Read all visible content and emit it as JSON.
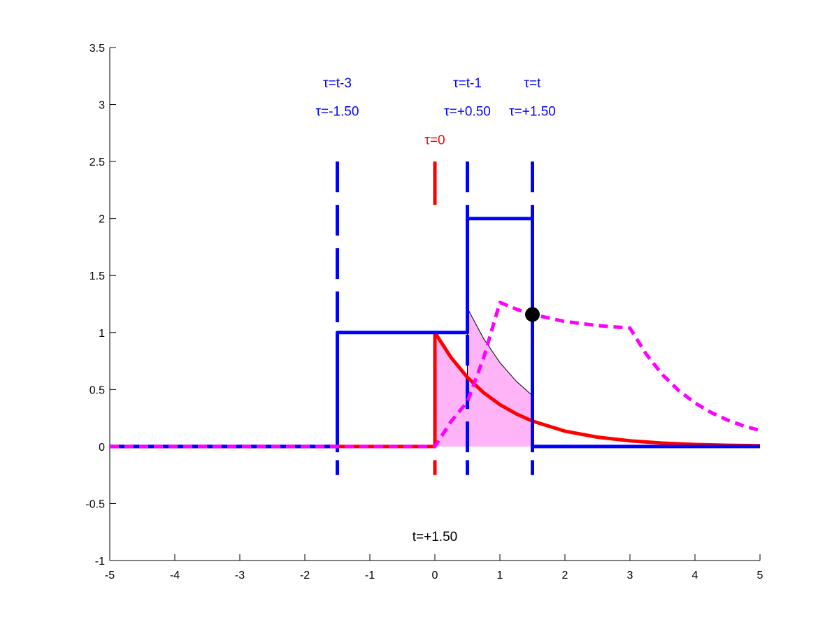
{
  "chart_data": {
    "type": "line",
    "xlim": [
      -5,
      5
    ],
    "ylim": [
      -1,
      3.5
    ],
    "x_ticks": [
      "-5",
      "-4",
      "-3",
      "-2",
      "-1",
      "0",
      "1",
      "2",
      "3",
      "4",
      "5"
    ],
    "y_ticks": [
      "-1",
      "-0.5",
      "0",
      "0.5",
      "1",
      "1.5",
      "2",
      "2.5",
      "3",
      "3.5"
    ],
    "grid": false,
    "t_value": 1.5,
    "colors": {
      "input": "#0000ff",
      "impulse_response": "#ff0000",
      "output": "#ff00ff",
      "overlap_fill": "#ffb4f7",
      "marker": "#000000"
    },
    "series": [
      {
        "style": "solid-blue-step",
        "x": [
          -5,
          -1.5,
          -1.5,
          0.5,
          0.5,
          1.5,
          1.5,
          5
        ],
        "y": [
          0,
          0,
          1,
          1,
          2,
          2,
          0,
          0
        ]
      },
      {
        "style": "solid-red-exponential",
        "x": [
          -5,
          0,
          0,
          0.25,
          0.5,
          0.75,
          1,
          1.25,
          1.5,
          2,
          2.5,
          3,
          3.5,
          4,
          4.5,
          5
        ],
        "y": [
          0,
          0,
          1,
          0.779,
          0.607,
          0.472,
          0.368,
          0.287,
          0.223,
          0.135,
          0.082,
          0.05,
          0.03,
          0.018,
          0.011,
          0.007
        ]
      },
      {
        "style": "dashed-magenta",
        "x": [
          -5,
          0,
          0.25,
          0.5,
          0.75,
          1,
          1.25,
          1.5,
          2,
          2.5,
          3,
          3.25,
          3.5,
          3.75,
          4,
          4.25,
          4.5,
          4.75,
          5
        ],
        "y": [
          0,
          0,
          0.221,
          0.393,
          0.779,
          1.264,
          1.205,
          1.158,
          1.097,
          1.061,
          1.039,
          0.81,
          0.63,
          0.491,
          0.382,
          0.298,
          0.232,
          0.18,
          0.141
        ]
      }
    ],
    "overlap_region": {
      "x": [
        0,
        0.25,
        0.5,
        0.5,
        0.75,
        1,
        1.25,
        1.5
      ],
      "y": [
        1,
        0.779,
        0.607,
        1.213,
        0.945,
        0.736,
        0.573,
        0.446
      ]
    },
    "current_point": {
      "x": 1.5,
      "y": 1.158
    },
    "blue_markers": [
      {
        "x": -1.5,
        "labels": [
          "τ=t-3",
          "τ=-1.50"
        ]
      },
      {
        "x": 0.5,
        "labels": [
          "τ=t-1",
          "τ=+0.50"
        ]
      },
      {
        "x": 1.5,
        "labels": [
          "τ=t",
          "τ=+1.50"
        ]
      }
    ],
    "red_marker": {
      "x": 0,
      "label": "τ=0"
    },
    "time_label": "t=+1.50"
  }
}
